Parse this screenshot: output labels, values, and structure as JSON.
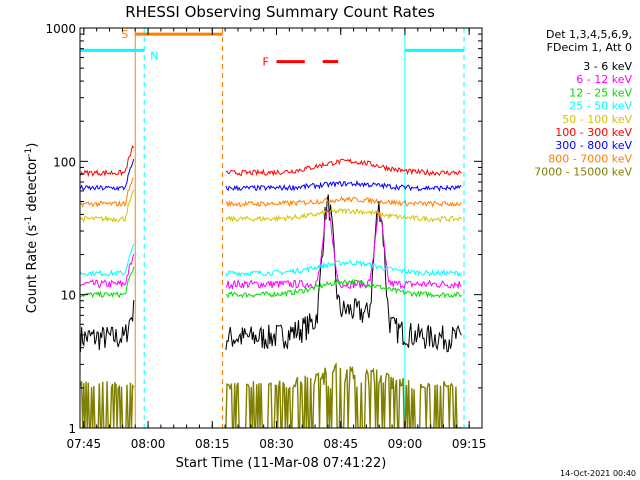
{
  "chart_data": {
    "type": "line",
    "title": "RHESSI Observing Summary Count Rates",
    "xlabel": "Start Time (11-Mar-08 07:41:22)",
    "ylabel_main": "Count Rate (s",
    "ylabel_sup1": "-1",
    "ylabel_mid": " detector",
    "ylabel_sup2": "-1",
    "ylabel_end": ")",
    "yscale": "log",
    "xlim": [
      7.735,
      9.3
    ],
    "ylim": [
      1,
      1000
    ],
    "xticks": [
      7.75,
      8.0,
      8.25,
      8.5,
      8.75,
      9.0,
      9.25
    ],
    "xtick_labels": [
      "07:45",
      "08:00",
      "08:15",
      "08:30",
      "08:45",
      "09:00",
      "09:15"
    ],
    "yticks": [
      1,
      10,
      100,
      1000
    ],
    "ytick_labels": [
      "1",
      "10",
      "100",
      "1000"
    ],
    "legend_header": [
      "Det 1,3,4,5,6,9,",
      "FDecim 1, Att 0"
    ],
    "legend_placement": "right",
    "timestamp": "14-Oct-2021 00:40",
    "series": [
      {
        "name": "3 - 6 keV",
        "color": "#000000",
        "base": 4.8,
        "flare": 9.5
      },
      {
        "name": "6 - 12 keV",
        "color": "#ff00ff",
        "base": 12.0,
        "flare": 3.0
      },
      {
        "name": "12 - 25 keV",
        "color": "#00dd00",
        "base": 10.0,
        "flare": 0.25
      },
      {
        "name": "25 - 50 keV",
        "color": "#00ffff",
        "base": 14.5,
        "flare": 0.2
      },
      {
        "name": "50 - 100 keV",
        "color": "#d4c400",
        "base": 37.0,
        "flare": 0.15
      },
      {
        "name": "100 - 300 keV",
        "color": "#ff0000",
        "base": 82.0,
        "flare": 0.22
      },
      {
        "name": "300 - 800 keV",
        "color": "#0000ff",
        "base": 63.0,
        "flare": 0.08
      },
      {
        "name": "800 - 7000 keV",
        "color": "#ff8000",
        "base": 48.0,
        "flare": 0.08
      },
      {
        "name": "7000 - 15000 keV",
        "color": "#808000",
        "base": 1.95,
        "flare": 0.3
      }
    ],
    "data_gaps": [
      [
        7.95,
        8.3
      ]
    ],
    "flags": [
      {
        "label": "S",
        "color": "#ff8000",
        "y": 900,
        "intervals": [
          [
            7.95,
            8.29
          ]
        ]
      },
      {
        "label": "N",
        "color": "#00ffff",
        "y": 680,
        "intervals": [
          [
            7.735,
            7.985
          ],
          [
            9.0,
            9.23
          ]
        ]
      },
      {
        "label": "F",
        "color": "#ff0000",
        "y": 560,
        "intervals": [
          [
            8.5,
            8.61
          ],
          [
            8.68,
            8.74
          ]
        ]
      }
    ],
    "vlines": [
      {
        "x": 7.95,
        "color": "#ff8000",
        "style": "solid"
      },
      {
        "x": 7.985,
        "color": "#00ffff",
        "style": "dashed"
      },
      {
        "x": 8.29,
        "color": "#ff8000",
        "style": "dashed"
      },
      {
        "x": 9.0,
        "color": "#00ffff",
        "style": "solid"
      },
      {
        "x": 9.23,
        "color": "#00ffff",
        "style": "dashed"
      }
    ],
    "peaks": [
      8.7,
      8.9
    ]
  }
}
